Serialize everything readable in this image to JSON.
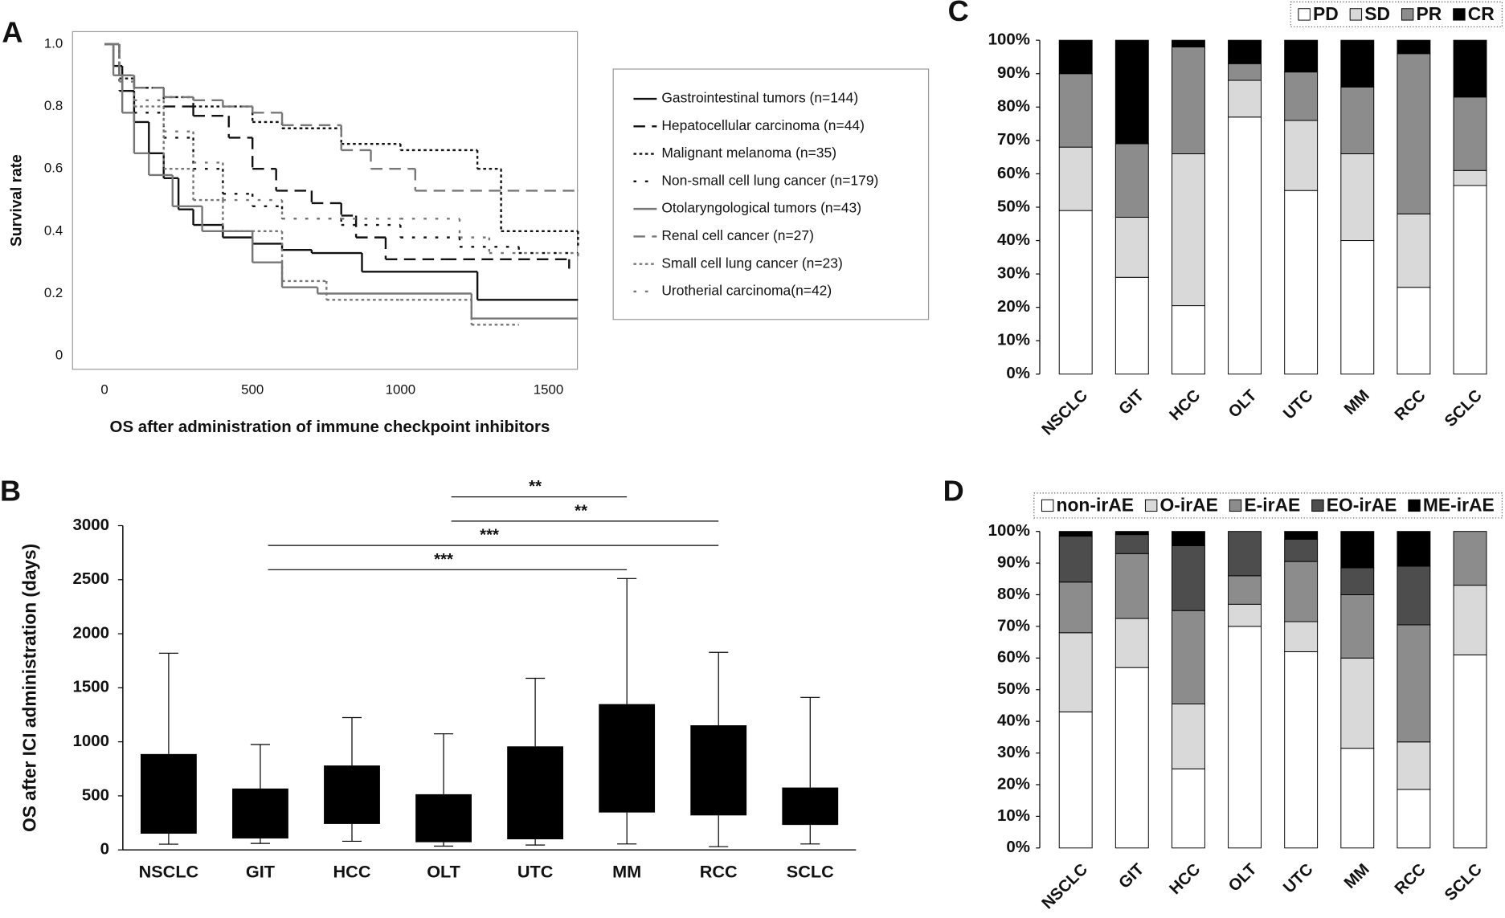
{
  "chart_data": [
    {
      "type": "line",
      "panel": "A",
      "x_label": "OS after administration of immune checkpoint inhibitors",
      "y_label": "Survival rate",
      "xlim": [
        -108,
        1598
      ],
      "ylim": [
        -0.043,
        1.04
      ],
      "xticks": [
        0,
        500,
        1000,
        1500
      ],
      "yticks": [
        0,
        0.2,
        0.4,
        0.6,
        0.8,
        {
          "value": 1,
          "label": "1.0"
        }
      ],
      "legend": "right",
      "series": [
        {
          "name": "Gastrointestinal tumors (n=144)",
          "color": "#111111",
          "dash": "none",
          "x": [
            0,
            30,
            60,
            100,
            150,
            200,
            250,
            300,
            400,
            500,
            600,
            700,
            870,
            1260,
            1600
          ],
          "values": [
            1,
            0.93,
            0.85,
            0.75,
            0.65,
            0.57,
            0.47,
            0.42,
            0.38,
            0.36,
            0.34,
            0.33,
            0.27,
            0.18,
            0.18
          ]
        },
        {
          "name": "Hepatocellular carcinoma (n=44)",
          "color": "#111111",
          "dash": "12,7",
          "x": [
            0,
            50,
            100,
            200,
            300,
            420,
            500,
            580,
            700,
            800,
            850,
            950,
            1150,
            1570
          ],
          "values": [
            1,
            0.9,
            0.86,
            0.8,
            0.77,
            0.7,
            0.6,
            0.53,
            0.49,
            0.45,
            0.38,
            0.31,
            0.31,
            0.28
          ]
        },
        {
          "name": "Malignant melanoma (n=35)",
          "color": "#111111",
          "dash": "3,3",
          "x": [
            0,
            50,
            100,
            200,
            300,
            500,
            600,
            800,
            1000,
            1260,
            1340,
            1600
          ],
          "values": [
            1,
            0.89,
            0.86,
            0.83,
            0.8,
            0.75,
            0.73,
            0.68,
            0.66,
            0.6,
            0.4,
            0.35
          ]
        },
        {
          "name": "Non-small cell lung cancer (n=179)",
          "color": "#111111",
          "dash": "3,9",
          "x": [
            0,
            50,
            100,
            200,
            300,
            400,
            500,
            600,
            800,
            1000,
            1200,
            1400,
            1600
          ],
          "values": [
            1,
            0.85,
            0.78,
            0.7,
            0.6,
            0.52,
            0.48,
            0.44,
            0.42,
            0.38,
            0.35,
            0.33,
            0.32
          ]
        },
        {
          "name": "Otolaryngological tumors (n=43)",
          "color": "#777777",
          "dash": "none",
          "x": [
            0,
            30,
            60,
            100,
            150,
            230,
            330,
            500,
            600,
            720,
            1240,
            1600
          ],
          "values": [
            1,
            0.9,
            0.78,
            0.65,
            0.58,
            0.48,
            0.4,
            0.3,
            0.22,
            0.2,
            0.12,
            0.12
          ]
        },
        {
          "name": "Renal cell cancer (n=27)",
          "color": "#777777",
          "dash": "12,7",
          "x": [
            0,
            50,
            100,
            200,
            300,
            400,
            500,
            600,
            800,
            900,
            1050,
            1300,
            1600
          ],
          "values": [
            1,
            0.9,
            0.86,
            0.83,
            0.82,
            0.8,
            0.78,
            0.74,
            0.66,
            0.6,
            0.53,
            0.53,
            0.53
          ]
        },
        {
          "name": "Small cell lung cancer (n=23)",
          "color": "#777777",
          "dash": "3,3",
          "x": [
            0,
            50,
            100,
            200,
            300,
            400,
            600,
            750,
            1000,
            1240,
            1400
          ],
          "values": [
            1,
            0.9,
            0.8,
            0.6,
            0.5,
            0.4,
            0.24,
            0.18,
            0.18,
            0.1,
            0.1
          ]
        },
        {
          "name": "Urotherial carcinoma(n=42)",
          "color": "#777777",
          "dash": "3,9",
          "x": [
            0,
            50,
            100,
            200,
            300,
            400,
            600,
            800,
            1000,
            1200,
            1300,
            1600
          ],
          "values": [
            1,
            0.88,
            0.82,
            0.72,
            0.62,
            0.5,
            0.44,
            0.44,
            0.44,
            0.38,
            0.33,
            0.31
          ]
        }
      ]
    },
    {
      "type": "box",
      "panel": "B",
      "y_label": "OS after ICI administration (days)",
      "categories": [
        "NSCLC",
        "GIT",
        "HCC",
        "OLT",
        "UTC",
        "MM",
        "RCC",
        "SCLC"
      ],
      "whisker_low": [
        53,
        60,
        80,
        35,
        45,
        55,
        30,
        55
      ],
      "box_low": [
        150,
        106,
        240,
        71,
        98,
        346,
        319,
        231
      ],
      "box_high": [
        887,
        568,
        781,
        515,
        958,
        1349,
        1153,
        577
      ],
      "whisker_high": [
        1820,
        975,
        1224,
        1074,
        1588,
        2511,
        1828,
        1411
      ],
      "color": "#000000",
      "ylim": [
        0,
        3000
      ],
      "yticks": [
        0,
        500,
        1000,
        1500,
        2000,
        2500,
        3000
      ],
      "comparisons": [
        {
          "between": [
            "OLT",
            "MM"
          ],
          "label": "**"
        },
        {
          "between": [
            "OLT",
            "RCC"
          ],
          "label": "**"
        },
        {
          "between": [
            "GIT",
            "RCC"
          ],
          "label": "***"
        },
        {
          "between": [
            "GIT",
            "MM"
          ],
          "label": "***"
        }
      ]
    },
    {
      "type": "stacked-bar",
      "panel": "C",
      "categories": [
        "NSCLC",
        "GIT",
        "HCC",
        "OLT",
        "UTC",
        "MM",
        "RCC",
        "SCLC"
      ],
      "ylim": [
        0,
        100
      ],
      "yticks": [
        {
          "value": 0,
          "label": "0%"
        },
        {
          "value": 10,
          "label": "10%"
        },
        {
          "value": 20,
          "label": "20%"
        },
        {
          "value": 30,
          "label": "30%"
        },
        {
          "value": 40,
          "label": "40%"
        },
        {
          "value": 50,
          "label": "50%"
        },
        {
          "value": 60,
          "label": "60%"
        },
        {
          "value": 70,
          "label": "70%"
        },
        {
          "value": 80,
          "label": "80%"
        },
        {
          "value": 90,
          "label": "90%"
        },
        {
          "value": 100,
          "label": "100%"
        }
      ],
      "legend": "top-right",
      "series": [
        {
          "name": "PD",
          "color": "#ffffff",
          "values": [
            49,
            29,
            20.5,
            77,
            55,
            40,
            26,
            56.5
          ]
        },
        {
          "name": "SD",
          "color": "#d9d9d9",
          "values": [
            19,
            18,
            45.5,
            11,
            21,
            26,
            22,
            4.5
          ]
        },
        {
          "name": "PR",
          "color": "#8c8c8c",
          "values": [
            22,
            22,
            32,
            5,
            14.5,
            20,
            48,
            22
          ]
        },
        {
          "name": "CR",
          "color": "#000000",
          "values": [
            10,
            31,
            2,
            7,
            9.5,
            14,
            4,
            17
          ]
        }
      ]
    },
    {
      "type": "stacked-bar",
      "panel": "D",
      "categories": [
        "NSCLC",
        "GIT",
        "HCC",
        "OLT",
        "UTC",
        "MM",
        "RCC",
        "SCLC"
      ],
      "ylim": [
        0,
        100
      ],
      "yticks": [
        {
          "value": 0,
          "label": "0%"
        },
        {
          "value": 10,
          "label": "10%"
        },
        {
          "value": 20,
          "label": "20%"
        },
        {
          "value": 30,
          "label": "30%"
        },
        {
          "value": 40,
          "label": "40%"
        },
        {
          "value": 50,
          "label": "50%"
        },
        {
          "value": 60,
          "label": "60%"
        },
        {
          "value": 70,
          "label": "70%"
        },
        {
          "value": 80,
          "label": "80%"
        },
        {
          "value": 90,
          "label": "90%"
        },
        {
          "value": 100,
          "label": "100%"
        }
      ],
      "legend": "top-right",
      "series": [
        {
          "name": "non-irAE",
          "color": "#ffffff",
          "values": [
            43,
            57,
            25,
            70,
            62,
            31.5,
            18.5,
            61
          ]
        },
        {
          "name": "O-irAE",
          "color": "#d9d9d9",
          "values": [
            25,
            15.5,
            20.5,
            7,
            9.5,
            28.5,
            15,
            22
          ]
        },
        {
          "name": "E-irAE",
          "color": "#8c8c8c",
          "values": [
            16,
            20.5,
            29.5,
            9,
            19,
            20,
            37,
            17
          ]
        },
        {
          "name": "EO-irAE",
          "color": "#4d4d4d",
          "values": [
            14.5,
            6,
            20.5,
            14,
            7,
            8.5,
            18.5,
            0
          ]
        },
        {
          "name": "ME-irAE",
          "color": "#000000",
          "values": [
            1.5,
            1,
            4.5,
            0,
            2.5,
            11.5,
            11,
            0
          ]
        }
      ]
    }
  ]
}
